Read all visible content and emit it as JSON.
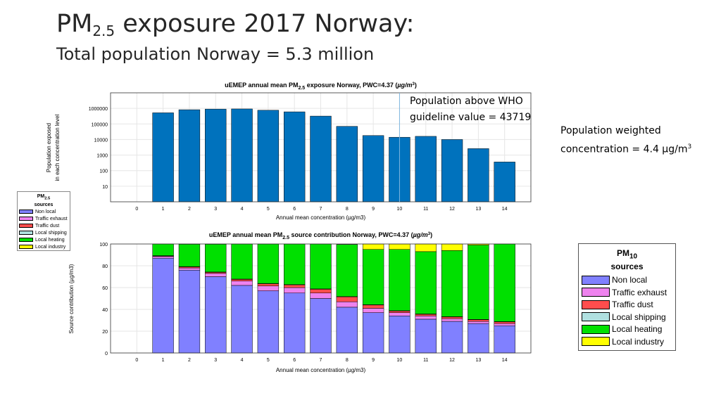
{
  "slide": {
    "title_main": "PM",
    "title_sub": "2.5",
    "title_rest": " exposure 2017 Norway:",
    "subtitle": "Total population Norway = 5.3 million",
    "pwc_note_line1": "Population weighted",
    "pwc_note_line2": "concentration =  4.4 µg/m",
    "pwc_note_sup": "3"
  },
  "legend_small": {
    "title_main": "PM",
    "title_sub": "2.5",
    "title_line2": "sources",
    "items": [
      "Non local",
      "Traffic exhaust",
      "Traffic dust",
      "Local shipping",
      "Local heating",
      "Local industry"
    ]
  },
  "legend_big": {
    "title_main": "PM",
    "title_sub": "10",
    "title_line2": "sources",
    "items": [
      "Non local",
      "Traffic exhaust",
      "Traffic dust",
      "Local shipping",
      "Local heating",
      "Local industry"
    ]
  },
  "colors": {
    "exposure_bar": "#0072bd",
    "sources": [
      "#8080ff",
      "#ee82ee",
      "#ff4d4d",
      "#b0e0e0",
      "#00e000",
      "#ffff00"
    ]
  },
  "chart_data": [
    {
      "type": "bar",
      "title_pre": "uEMEP annual mean PM",
      "title_sub": "2.5",
      "title_post": " exposure Norway, PWC=4.37 (",
      "title_unit": "µg/m",
      "title_sup": "3",
      "title_end": ")",
      "xlabel": "Annual mean concentration (µg/m3)",
      "ylabel_line1": "Population exposed",
      "ylabel_line2": "in each concentration level",
      "x": [
        0,
        1,
        2,
        3,
        4,
        5,
        6,
        7,
        8,
        9,
        10,
        11,
        12,
        13,
        14
      ],
      "values": [
        0,
        520000,
        820000,
        900000,
        920000,
        760000,
        600000,
        320000,
        70000,
        18000,
        14000,
        16000,
        10000,
        2600,
        360
      ],
      "y_scale": "log",
      "ylim": [
        1,
        10000000
      ],
      "y_ticks": [
        "10",
        "100",
        "1000",
        "10000",
        "100000",
        "1000000"
      ],
      "xlim": [
        -1,
        15
      ],
      "grid": true,
      "annotation_line1": "Population above WHO",
      "annotation_line2": "guideline value = 43719",
      "annotation_x": 10
    },
    {
      "type": "bar",
      "stacked": true,
      "title_pre": "uEMEP annual mean PM",
      "title_sub": "2.5",
      "title_post": " source contribution Norway, PWC=4.37 (",
      "title_unit": "µg/m",
      "title_sup": "3",
      "title_end": ")",
      "xlabel": "Annual mean concentration (µg/m3)",
      "ylabel": "Source contribution (µg/m3)",
      "x": [
        0,
        1,
        2,
        3,
        4,
        5,
        6,
        7,
        8,
        9,
        10,
        11,
        12,
        13,
        14
      ],
      "ylim": [
        0,
        100
      ],
      "y_ticks": [
        "0",
        "20",
        "40",
        "60",
        "80",
        "100"
      ],
      "xlim": [
        -1,
        15
      ],
      "grid": true,
      "series": [
        {
          "name": "Non local",
          "values": [
            0,
            87,
            76,
            70,
            62,
            57,
            55,
            50,
            42,
            37,
            34,
            31,
            29,
            27,
            25
          ]
        },
        {
          "name": "Traffic exhaust",
          "values": [
            0,
            1.5,
            2,
            3,
            4,
            4.5,
            5,
            5,
            5,
            4,
            3,
            3,
            2.5,
            2,
            2
          ]
        },
        {
          "name": "Traffic dust",
          "values": [
            0,
            0.5,
            1,
            1,
            1.5,
            2,
            2.5,
            3.5,
            4.5,
            3,
            1.5,
            1.5,
            1.5,
            1.5,
            1.5
          ]
        },
        {
          "name": "Local shipping",
          "values": [
            0,
            0.3,
            0.3,
            0.3,
            0.3,
            0.3,
            0.3,
            0.3,
            0.3,
            0.3,
            0.3,
            0.3,
            0.3,
            0.3,
            0.3
          ]
        },
        {
          "name": "Local heating",
          "values": [
            0,
            10.7,
            20.5,
            25.5,
            32.2,
            36.2,
            37.2,
            41.2,
            47.7,
            50.7,
            56.2,
            57.2,
            60.7,
            68.2,
            71.2
          ]
        },
        {
          "name": "Local industry",
          "values": [
            0,
            0,
            0.2,
            0.2,
            0,
            0,
            0,
            0,
            0,
            5,
            5,
            7,
            6,
            1,
            0
          ]
        }
      ]
    }
  ]
}
